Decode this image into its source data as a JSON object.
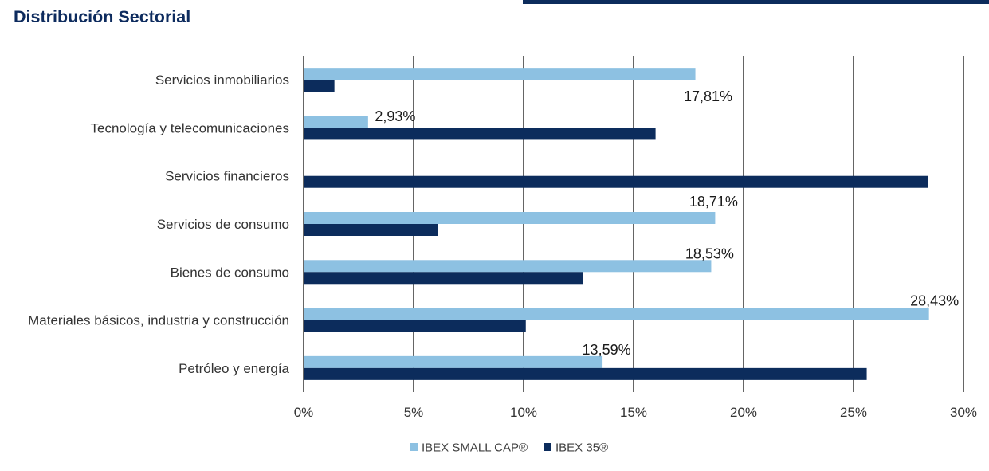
{
  "colors": {
    "ibex_small_cap": "#8dc1e2",
    "ibex_35": "#0c2c5c",
    "title": "#0d2b5e",
    "grid": "#3f3f3f",
    "accent_bar": "#0c2c5c"
  },
  "chart_data": {
    "type": "bar",
    "orientation": "horizontal",
    "title": "Distribución Sectorial",
    "xlabel": "",
    "ylabel": "",
    "categories": [
      "Servicios inmobiliarios",
      "Tecnología y telecomunicaciones",
      "Servicios financieros",
      "Servicios de consumo",
      "Bienes de consumo",
      "Materiales básicos, industria y construcción",
      "Petróleo y energía"
    ],
    "series": [
      {
        "name": "IBEX SMALL CAP®",
        "values": [
          17.81,
          2.93,
          0,
          18.71,
          18.53,
          28.43,
          13.59
        ],
        "data_labels": [
          "17,81%",
          "2,93%",
          null,
          "18,71%",
          "18,53%",
          "28,43%",
          "13,59%"
        ]
      },
      {
        "name": "IBEX 35®",
        "values": [
          1.4,
          16.0,
          28.4,
          6.1,
          12.7,
          10.1,
          25.6
        ]
      }
    ],
    "xlim": [
      0,
      30
    ],
    "x_ticks": [
      0,
      5,
      10,
      15,
      20,
      25,
      30
    ],
    "x_tick_labels": [
      "0%",
      "5%",
      "10%",
      "15%",
      "20%",
      "25%",
      "30%"
    ],
    "grid": true,
    "legend": "bottom-center"
  }
}
